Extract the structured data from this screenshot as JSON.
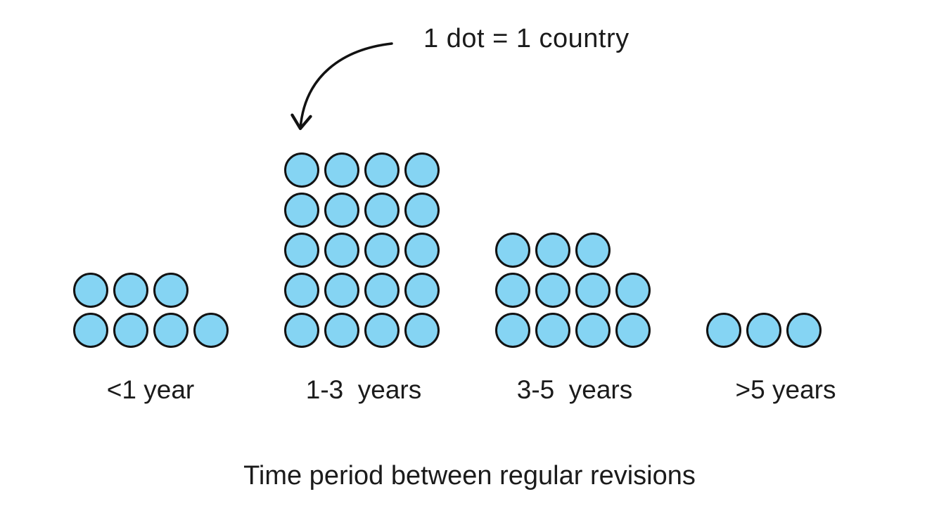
{
  "annotation": {
    "label": "1 dot = 1 country"
  },
  "title": "Time period between regular revisions",
  "colors": {
    "dot_fill": "#85d4f3",
    "dot_stroke": "#121212",
    "text": "#1b1b1b",
    "background": "#ffffff"
  },
  "chart_data": {
    "type": "bar",
    "style": "pictograph-dot-plot",
    "unit": "1 dot = 1 country",
    "title": "Time period between regular revisions",
    "xlabel": "Time period between regular revisions",
    "ylabel": "",
    "categories": [
      "<1 year",
      "1-3  years",
      "3-5  years",
      ">5 years"
    ],
    "values": [
      7,
      20,
      11,
      3
    ],
    "rows_top_down": [
      [
        3,
        4
      ],
      [
        4,
        4,
        4,
        4,
        4
      ],
      [
        3,
        4,
        4
      ],
      [
        3
      ]
    ],
    "legend_position": "top",
    "grid": false
  }
}
